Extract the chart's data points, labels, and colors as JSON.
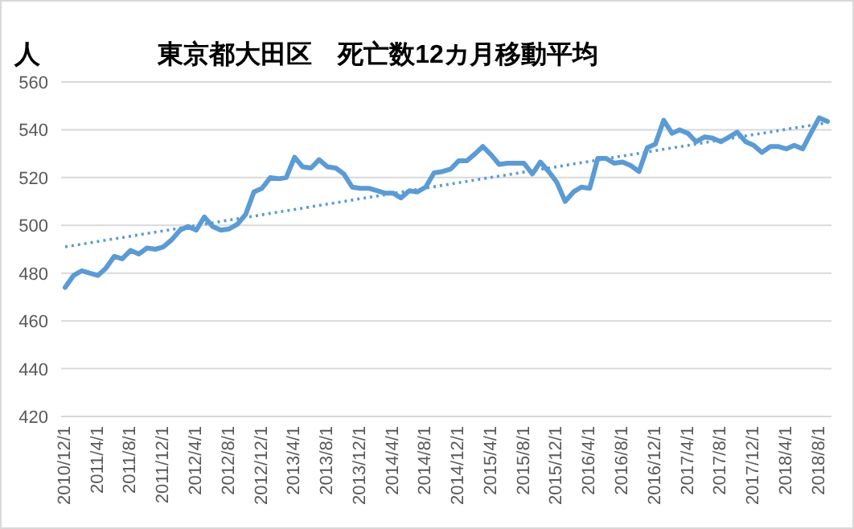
{
  "chart_data": {
    "type": "line",
    "title": "東京都大田区　死亡数12カ月移動平均",
    "ylabel": "人",
    "x": [
      "2010-12",
      "2011-01",
      "2011-02",
      "2011-03",
      "2011-04",
      "2011-05",
      "2011-06",
      "2011-07",
      "2011-08",
      "2011-09",
      "2011-10",
      "2011-11",
      "2011-12",
      "2012-01",
      "2012-02",
      "2012-03",
      "2012-04",
      "2012-05",
      "2012-06",
      "2012-07",
      "2012-08",
      "2012-09",
      "2012-10",
      "2012-11",
      "2012-12",
      "2013-01",
      "2013-02",
      "2013-03",
      "2013-04",
      "2013-05",
      "2013-06",
      "2013-07",
      "2013-08",
      "2013-09",
      "2013-10",
      "2013-11",
      "2013-12",
      "2014-01",
      "2014-02",
      "2014-03",
      "2014-04",
      "2014-05",
      "2014-06",
      "2014-07",
      "2014-08",
      "2014-09",
      "2014-10",
      "2014-11",
      "2014-12",
      "2015-01",
      "2015-02",
      "2015-03",
      "2015-04",
      "2015-05",
      "2015-06",
      "2015-07",
      "2015-08",
      "2015-09",
      "2015-10",
      "2015-11",
      "2015-12",
      "2016-01",
      "2016-02",
      "2016-03",
      "2016-04",
      "2016-05",
      "2016-06",
      "2016-07",
      "2016-08",
      "2016-09",
      "2016-10",
      "2016-11",
      "2016-12",
      "2017-01",
      "2017-02",
      "2017-03",
      "2017-04",
      "2017-05",
      "2017-06",
      "2017-07",
      "2017-08",
      "2017-09",
      "2017-10",
      "2017-11",
      "2017-12",
      "2018-01",
      "2018-02",
      "2018-03",
      "2018-04",
      "2018-05",
      "2018-06",
      "2018-07",
      "2018-08",
      "2018-09"
    ],
    "series": [
      {
        "color": "#5b9bd5",
        "values": [
          474,
          479,
          481,
          480,
          479,
          482,
          487,
          486,
          489.5,
          488,
          490.5,
          490,
          491,
          494,
          498,
          499.5,
          498,
          503.5,
          499.5,
          498,
          498.5,
          500.5,
          504.5,
          514,
          515.5,
          520,
          519.5,
          520,
          528.5,
          524.5,
          524,
          527.5,
          524.5,
          524,
          521.5,
          516,
          515.5,
          515.5,
          514.5,
          513.5,
          513.5,
          511.5,
          514.5,
          514,
          516,
          522,
          522.5,
          523.5,
          527,
          527,
          530,
          533,
          529.5,
          525.5,
          526,
          526,
          526,
          521.5,
          526.5,
          522.5,
          518,
          510,
          514,
          516,
          515.5,
          528,
          528,
          526,
          526.5,
          525,
          522.5,
          532.5,
          534,
          544,
          538.5,
          540,
          538.5,
          535,
          537,
          536.5,
          535,
          537,
          539,
          535,
          533.5,
          530.5,
          533,
          533,
          532,
          533.5,
          532,
          538.5,
          545,
          543.5
        ]
      },
      {
        "type": "line",
        "color": "#5b9bd5",
        "line_style": "dotted",
        "x": [
          "2010-12",
          "2018-09"
        ],
        "values": [
          491,
          543
        ]
      }
    ],
    "xlim": [
      "2010-11-16",
      "2018-09-16"
    ],
    "xticks": [
      {
        "value": "2010-12-01",
        "label": "2010/12/1"
      },
      {
        "value": "2011-04-01",
        "label": "2011/4/1"
      },
      {
        "value": "2011-08-01",
        "label": "2011/8/1"
      },
      {
        "value": "2011-12-01",
        "label": "2011/12/1"
      },
      {
        "value": "2012-04-01",
        "label": "2012/4/1"
      },
      {
        "value": "2012-08-01",
        "label": "2012/8/1"
      },
      {
        "value": "2012-12-01",
        "label": "2012/12/1"
      },
      {
        "value": "2013-04-01",
        "label": "2013/4/1"
      },
      {
        "value": "2013-08-01",
        "label": "2013/8/1"
      },
      {
        "value": "2013-12-01",
        "label": "2013/12/1"
      },
      {
        "value": "2014-04-01",
        "label": "2014/4/1"
      },
      {
        "value": "2014-08-01",
        "label": "2014/8/1"
      },
      {
        "value": "2014-12-01",
        "label": "2014/12/1"
      },
      {
        "value": "2015-04-01",
        "label": "2015/4/1"
      },
      {
        "value": "2015-08-01",
        "label": "2015/8/1"
      },
      {
        "value": "2015-12-01",
        "label": "2015/12/1"
      },
      {
        "value": "2016-04-01",
        "label": "2016/4/1"
      },
      {
        "value": "2016-08-01",
        "label": "2016/8/1"
      },
      {
        "value": "2016-12-01",
        "label": "2016/12/1"
      },
      {
        "value": "2017-04-01",
        "label": "2017/4/1"
      },
      {
        "value": "2017-08-01",
        "label": "2017/8/1"
      },
      {
        "value": "2017-12-01",
        "label": "2017/12/1"
      },
      {
        "value": "2018-04-01",
        "label": "2018/4/1"
      },
      {
        "value": "2018-08-01",
        "label": "2018/8/1"
      }
    ],
    "ylim": [
      420,
      560
    ],
    "yticks": [
      420,
      440,
      460,
      480,
      500,
      520,
      540,
      560
    ],
    "grid": "y"
  }
}
